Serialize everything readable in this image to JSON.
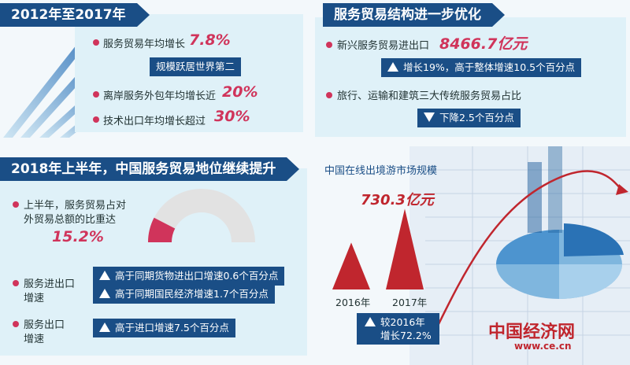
{
  "panel_a": {
    "title": "2012年至2017年",
    "items": [
      {
        "label": "服务贸易年均增长",
        "value": "7.8%"
      },
      {
        "label": "离岸服务外包年均增长近",
        "value": "20%"
      },
      {
        "label": "技术出口年均增长超过",
        "value": "30%"
      }
    ],
    "rank_box": "规模跃居世界第二"
  },
  "panel_b": {
    "title": "服务贸易结构进一步优化",
    "item1_label": "新兴服务贸易进出口",
    "item1_value": "8466.7亿元",
    "item1_box": "增长19%，高于整体增速10.5个百分点",
    "item2_label": "旅行、运输和建筑三大传统服务贸易占比",
    "item2_box": "下降2.5个百分点"
  },
  "panel_c": {
    "title": "2018年上半年，中国服务贸易地位继续提升",
    "share_label_1": "上半年，服务贸易占对",
    "share_label_2": "外贸易总额的比重达",
    "share_value": "15.2%",
    "share_fraction": 0.152,
    "imp_exp_label_1": "服务进出口",
    "imp_exp_label_2": "增速",
    "imp_exp_box_1": "高于同期货物进出口增速0.6个百分点",
    "imp_exp_box_2": "高于同期国民经济增速1.7个百分点",
    "exp_label_1": "服务出口",
    "exp_label_2": "增速",
    "exp_box": "高于进口增速7.5个百分点"
  },
  "chart_data": {
    "type": "bar",
    "title": "中国在线出境游市场规模",
    "categories": [
      "2016年",
      "2017年"
    ],
    "values": [
      424.2,
      730.3
    ],
    "value_label": "730.3亿元",
    "growth_box_1": "较2016年",
    "growth_box_2": "增长72.2%"
  },
  "logo": {
    "name": "中国经济网",
    "url": "www.ce.cn"
  },
  "colors": {
    "navy": "#1a4e86",
    "accent": "#d0345b",
    "bar": "#c0262e",
    "panel": "#dff1f8",
    "gauge_bg": "#e2e2e2"
  }
}
